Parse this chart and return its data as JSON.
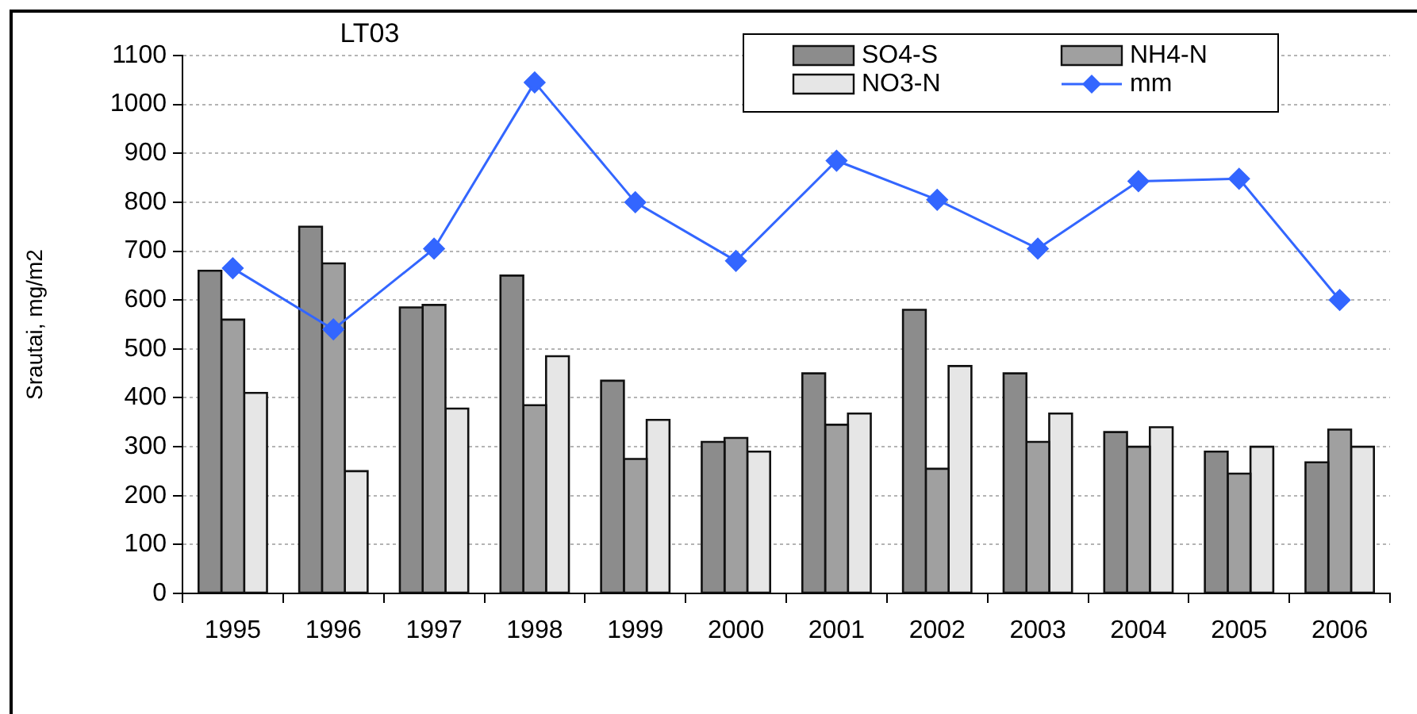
{
  "chart_data": {
    "type": "bar",
    "title": "LT03",
    "ylabel": "Srautai, mg/m2",
    "categories": [
      "1995",
      "1996",
      "1997",
      "1998",
      "1999",
      "2000",
      "2001",
      "2002",
      "2003",
      "2004",
      "2005",
      "2006"
    ],
    "series": [
      {
        "name": "SO4-S",
        "color": "#8c8c8c",
        "values": [
          660,
          750,
          585,
          650,
          435,
          310,
          450,
          580,
          450,
          330,
          290,
          268
        ]
      },
      {
        "name": "NH4-N",
        "color": "#a0a0a0",
        "values": [
          560,
          675,
          590,
          385,
          275,
          318,
          345,
          255,
          310,
          300,
          245,
          335
        ]
      },
      {
        "name": "NO3-N",
        "color": "#e6e6e6",
        "values": [
          410,
          250,
          378,
          485,
          355,
          290,
          368,
          465,
          368,
          340,
          300,
          300
        ]
      },
      {
        "name": "mm",
        "type": "line",
        "color": "#3366ff",
        "values": [
          665,
          540,
          705,
          1045,
          800,
          680,
          885,
          805,
          705,
          843,
          848,
          600
        ]
      }
    ],
    "ylim": [
      0,
      1100
    ],
    "yticks": [
      0,
      100,
      200,
      300,
      400,
      500,
      600,
      700,
      800,
      900,
      1000,
      1100
    ],
    "grid": "y",
    "legend": "top right",
    "marker": "diamond"
  }
}
